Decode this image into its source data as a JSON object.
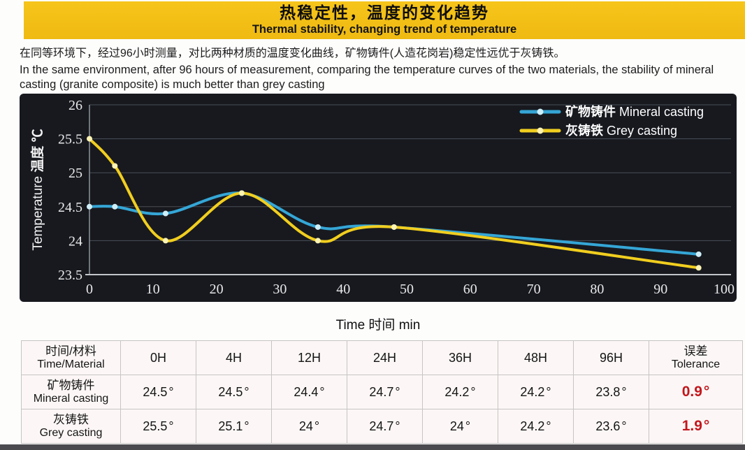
{
  "banner": {
    "title_zh": "热稳定性，温度的变化趋势",
    "title_en": "Thermal stability, changing trend of temperature",
    "background": "#f5c018"
  },
  "description": {
    "zh": "在同等环境下，经过96小时测量，对比两种材质的温度变化曲线，矿物铸件(人造花岗岩)稳定性远优于灰铸铁。",
    "en": "In the same environment, after 96 hours of measurement, comparing the temperature curves of the two materials, the stability of mineral casting (granite composite) is much better than grey casting"
  },
  "chart_data": {
    "type": "line",
    "x": [
      0,
      4,
      12,
      24,
      36,
      48,
      96
    ],
    "series": [
      {
        "name_zh": "矿物铸件",
        "name_en": "Mineral casting",
        "color": "#35a6d6",
        "dot_color": "#cfeef8",
        "values": [
          24.5,
          24.5,
          24.4,
          24.7,
          24.2,
          24.2,
          23.8
        ]
      },
      {
        "name_zh": "灰铸铁",
        "name_en": "Grey casting",
        "color": "#f1ce1f",
        "dot_color": "#fdf3b4",
        "values": [
          25.5,
          25.1,
          24.0,
          24.7,
          24.0,
          24.2,
          23.6
        ]
      }
    ],
    "xlabel": "Time 时间 min",
    "ylabel_en": "Temperature",
    "ylabel_zh": "温度 ℃",
    "xlim": [
      0,
      100
    ],
    "ylim": [
      23.5,
      26
    ],
    "x_ticks": [
      0,
      10,
      20,
      30,
      40,
      50,
      60,
      70,
      80,
      90,
      100
    ],
    "y_ticks": [
      26,
      25.5,
      25,
      24.5,
      24,
      23.5
    ],
    "grid": "horizontal",
    "legend_position": "top-right",
    "plot_background": "#17191f"
  },
  "table": {
    "material_header_zh": "时间/材料",
    "material_header_en": "Time/Material",
    "time_headers": [
      "0H",
      "4H",
      "12H",
      "24H",
      "36H",
      "48H",
      "96H"
    ],
    "tolerance_header_zh": "误差",
    "tolerance_header_en": "Tolerance",
    "degree_symbol": "°",
    "tolerance_color": "#c3161c",
    "rows": [
      {
        "name_zh": "矿物铸件",
        "name_en": "Mineral casting",
        "values": [
          "24.5",
          "24.5",
          "24.4",
          "24.7",
          "24.2",
          "24.2",
          "23.8"
        ],
        "tolerance": "0.9"
      },
      {
        "name_zh": "灰铸铁",
        "name_en": "Grey casting",
        "values": [
          "25.5",
          "25.1",
          "24",
          "24.7",
          "24",
          "24.2",
          "23.6"
        ],
        "tolerance": "1.9"
      }
    ]
  }
}
